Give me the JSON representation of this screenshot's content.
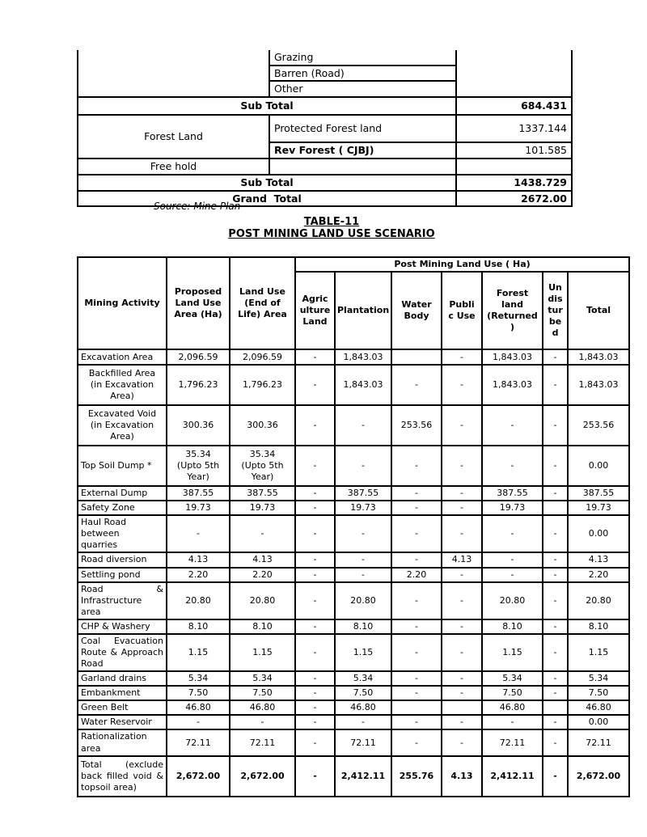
{
  "top_table": {
    "grazing": "Grazing",
    "barren": "Barren (Road)",
    "other": "Other",
    "sub_total_1_label": "Sub Total",
    "sub_total_1_value": "684.431",
    "forest_land": "Forest Land",
    "protected_forest": "Protected Forest land",
    "protected_forest_value": "1337.144",
    "rev_forest": "Rev Forest ( CJBJ)",
    "rev_forest_value": "101.585",
    "free_hold": "Free hold",
    "sub_total_2_label": "Sub Total",
    "sub_total_2_value": "1438.729",
    "grand_total_label": "Grand  Total",
    "grand_total_value": "2672.00"
  },
  "source_note": "Source: Mine Plan",
  "table11": {
    "title1": "TABLE-11",
    "title2": "POST MINING LAND USE SCENARIO",
    "header": {
      "mining_activity": "Mining Activity",
      "proposed": "Proposed\nLand Use\nArea (Ha)",
      "land_use_eol": "Land Use\n(End of\nLife) Area",
      "post_mining_span": "Post Mining Land Use ( Ha)",
      "agriculture": "Agric\nulture\nLand",
      "plantation": "Plantation",
      "water_body": "Water\nBody",
      "public_use": "Publi\nc Use",
      "forest_land_returned": "Forest\nland\n(Returned\n)",
      "undisturbed": "Un\ndis\ntur\nbe\nd",
      "total": "Total"
    },
    "rows": [
      {
        "label": "Excavation Area",
        "align": "",
        "values": [
          "2,096.59",
          "2,096.59",
          "-",
          "1,843.03",
          "",
          "-",
          "1,843.03",
          "-",
          "1,843.03"
        ]
      },
      {
        "label": "Backfilled Area\n(in Excavation\nArea)",
        "align": "center",
        "pre": true,
        "values": [
          "1,796.23",
          "1,796.23",
          "-",
          "1,843.03",
          "-",
          "-",
          "1,843.03",
          "-",
          "1,843.03"
        ]
      },
      {
        "label": "Excavated Void\n(in Excavation\nArea)",
        "align": "center",
        "pre": true,
        "values": [
          "300.36",
          "300.36",
          "-",
          "-",
          "253.56",
          "-",
          "-",
          "-",
          "253.56"
        ]
      },
      {
        "label": "Top Soil Dump *",
        "align": "",
        "values": [
          "35.34\n(Upto 5th\nYear)",
          "35.34\n(Upto 5th\nYear)",
          "-",
          "-",
          "-",
          "-",
          "-",
          "-",
          "0.00"
        ]
      },
      {
        "label": "External Dump",
        "align": "",
        "values": [
          "387.55",
          "387.55",
          "-",
          "387.55",
          "-",
          "-",
          "387.55",
          "-",
          "387.55"
        ]
      },
      {
        "label": "Safety Zone",
        "align": "",
        "values": [
          "19.73",
          "19.73",
          "-",
          "19.73",
          "-",
          "-",
          "19.73",
          "",
          "19.73"
        ]
      },
      {
        "label": "Haul Road\nbetween\nquarries",
        "align": "",
        "pre": true,
        "values": [
          "-",
          "-",
          "-",
          "-",
          "-",
          "-",
          "-",
          "-",
          "0.00"
        ]
      },
      {
        "label": "Road diversion",
        "align": "",
        "values": [
          "4.13",
          "4.13",
          "-",
          "-",
          "-",
          "4.13",
          "-",
          "-",
          "4.13"
        ]
      },
      {
        "label": "Settling pond",
        "align": "",
        "values": [
          "2.20",
          "2.20",
          "-",
          "-",
          "2.20",
          "-",
          "-",
          "-",
          "2.20"
        ]
      },
      {
        "label": "Road & Infrastructure area",
        "align": "justify",
        "values": [
          "20.80",
          "20.80",
          "-",
          "20.80",
          "-",
          "-",
          "20.80",
          "-",
          "20.80"
        ]
      },
      {
        "label": "CHP & Washery",
        "align": "",
        "values": [
          "8.10",
          "8.10",
          "-",
          "8.10",
          "-",
          "-",
          "8.10",
          "-",
          "8.10"
        ]
      },
      {
        "label": "Coal Evacuation Route & Approach Road",
        "align": "justify",
        "values": [
          "1.15",
          "1.15",
          "-",
          "1.15",
          "-",
          "-",
          "1.15",
          "-",
          "1.15"
        ]
      },
      {
        "label": "Garland drains",
        "align": "",
        "values": [
          "5.34",
          "5.34",
          "-",
          "5.34",
          "-",
          "-",
          "5.34",
          "-",
          "5.34"
        ]
      },
      {
        "label": "Embankment",
        "align": "",
        "values": [
          "7.50",
          "7.50",
          "-",
          "7.50",
          "-",
          "-",
          "7.50",
          "-",
          "7.50"
        ]
      },
      {
        "label": "Green Belt",
        "align": "",
        "values": [
          "46.80",
          "46.80",
          "-",
          "46.80",
          "",
          "",
          "46.80",
          "",
          "46.80"
        ]
      },
      {
        "label": "Water Reservoir",
        "align": "",
        "values": [
          "-",
          "-",
          "-",
          "-",
          "-",
          "-",
          "-",
          "-",
          "0.00"
        ]
      },
      {
        "label": "Rationalization area",
        "align": "",
        "values": [
          "72.11",
          "72.11",
          "-",
          "72.11",
          "-",
          "-",
          "72.11",
          "-",
          "72.11"
        ]
      },
      {
        "label": "Total (exclude back filled void & topsoil area)",
        "align": "justify",
        "bold": true,
        "values": [
          "2,672.00",
          "2,672.00",
          "-",
          "2,412.11",
          "255.76",
          "4.13",
          "2,412.11",
          "-",
          "2,672.00"
        ]
      }
    ]
  }
}
